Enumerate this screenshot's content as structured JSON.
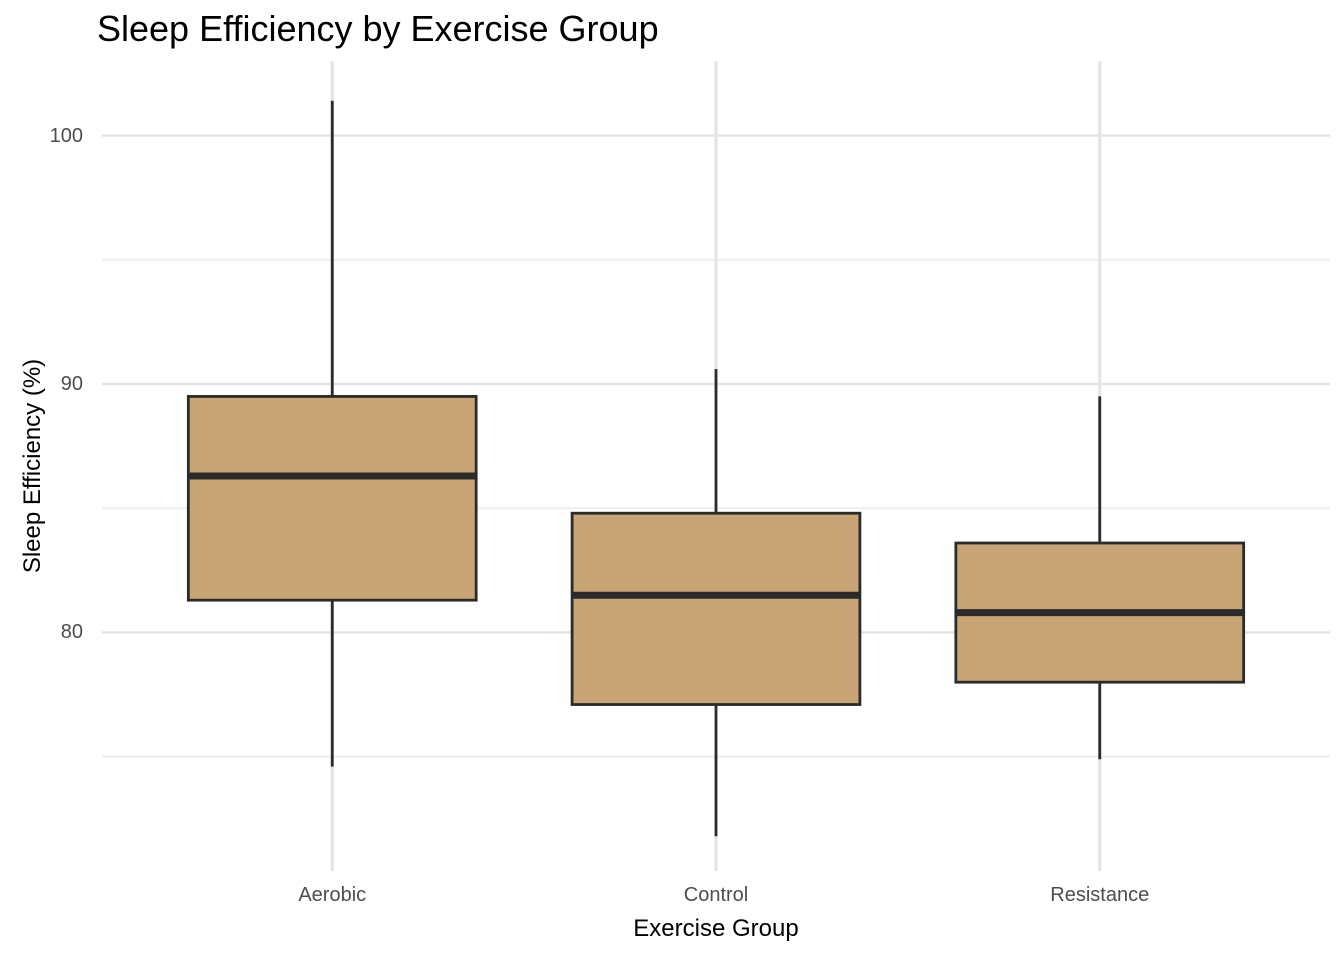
{
  "chart_data": {
    "type": "boxplot",
    "title": "Sleep Efficiency by Exercise Group",
    "xlabel": "Exercise Group",
    "ylabel": "Sleep Efficiency (%)",
    "categories": [
      "Aerobic",
      "Control",
      "Resistance"
    ],
    "series": [
      {
        "name": "Aerobic",
        "whisker_low": 74.6,
        "q1": 81.3,
        "median": 86.3,
        "q3": 89.5,
        "whisker_high": 101.4
      },
      {
        "name": "Control",
        "whisker_low": 71.8,
        "q1": 77.1,
        "median": 81.5,
        "q3": 84.8,
        "whisker_high": 90.6
      },
      {
        "name": "Resistance",
        "whisker_low": 74.9,
        "q1": 78.0,
        "median": 80.8,
        "q3": 83.6,
        "whisker_high": 89.5
      }
    ],
    "ylim": [
      70.4,
      103.0
    ],
    "y_major_ticks": [
      100,
      90,
      80
    ],
    "y_minor_gridlines": [
      95,
      85,
      75
    ],
    "grid": "horizontal major + minor, vertical major at category centers, no axis lines or tick marks",
    "legend_position": "none",
    "colors": {
      "box_fill": "#c9a576",
      "box_border": "#2b2b2b",
      "median_line": "#2b2b2b",
      "whisker": "#2b2b2b",
      "grid_major": "#e3e3e3",
      "grid_minor": "#efefef",
      "grid_vertical": "#e4e4e4",
      "tick_label": "#4d4d4d",
      "background": "#ffffff"
    }
  }
}
